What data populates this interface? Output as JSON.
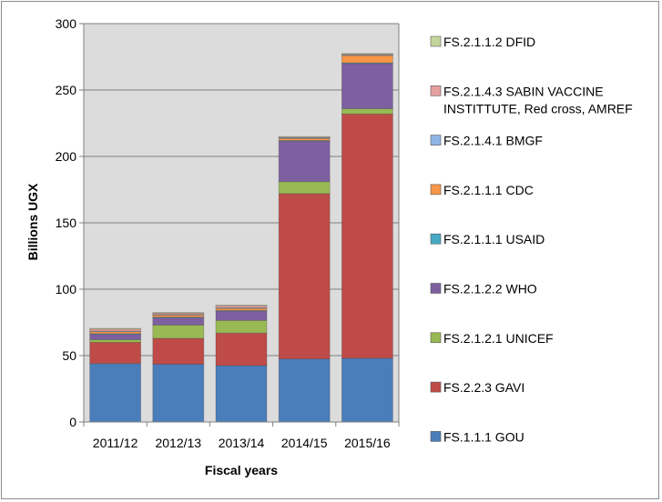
{
  "chart_data": {
    "type": "bar",
    "stacked": true,
    "categories": [
      "2011/12",
      "2012/13",
      "2013/14",
      "2014/15",
      "2015/16"
    ],
    "xlabel": "Fiscal years",
    "ylabel": "Billions UGX",
    "ylim": [
      0,
      300
    ],
    "yticks": [
      "0",
      "50",
      "100",
      "150",
      "200",
      "250",
      "300"
    ],
    "grid": true,
    "legend_position": "right",
    "series": [
      {
        "name": "FS.1.1.1 GOU",
        "color": "#4a7ebb",
        "values": [
          44,
          43.5,
          42.5,
          47.5,
          48
        ]
      },
      {
        "name": "FS.2.2.3 GAVI",
        "color": "#be4b48",
        "values": [
          16,
          19.5,
          24.5,
          124.5,
          184
        ]
      },
      {
        "name": "FS.2.1.2.1 UNICEF",
        "color": "#98b954",
        "values": [
          2,
          10,
          9.5,
          9,
          4
        ]
      },
      {
        "name": "FS.2.1.2.2 WHO",
        "color": "#7d60a0",
        "values": [
          4,
          5.5,
          7,
          30.5,
          34
        ]
      },
      {
        "name": "FS.2.1.1.1 USAID",
        "color": "#46aac5",
        "values": [
          0.5,
          0.5,
          0.5,
          0.5,
          0.5
        ]
      },
      {
        "name": "FS.2.1.1.1 CDC",
        "color": "#f79646",
        "values": [
          1.5,
          1.5,
          1.5,
          1.5,
          5.5
        ]
      },
      {
        "name": "FS.2.1.4.1 BMGF",
        "color": "#8eb4e3",
        "values": [
          0.5,
          0.5,
          0.5,
          0.5,
          0.5
        ]
      },
      {
        "name": "FS.2.1.4.3 SABIN VACCINE INSTITTUTE, Red cross, AMREF",
        "color": "#e6a09e",
        "values": [
          1.5,
          1,
          1.5,
          0.5,
          0.5
        ]
      },
      {
        "name": "FS.2.1.1.2 DFID",
        "color": "#c3d69b",
        "values": [
          0.5,
          0.5,
          0.5,
          0.5,
          0.5
        ]
      }
    ],
    "legend_lines": [
      [
        "FS.2.1.1.2 DFID"
      ],
      [
        "FS.2.1.4.3 SABIN VACCINE",
        "INSTITTUTE, Red cross, AMREF"
      ],
      [
        "FS.2.1.4.1 BMGF"
      ],
      [
        "FS.2.1.1.1 CDC"
      ],
      [
        "FS.2.1.1.1 USAID"
      ],
      [
        "FS.2.1.2.2 WHO"
      ],
      [
        "FS.2.1.2.1 UNICEF"
      ],
      [
        "FS.2.2.3 GAVI"
      ],
      [
        "FS.1.1.1 GOU"
      ]
    ]
  }
}
